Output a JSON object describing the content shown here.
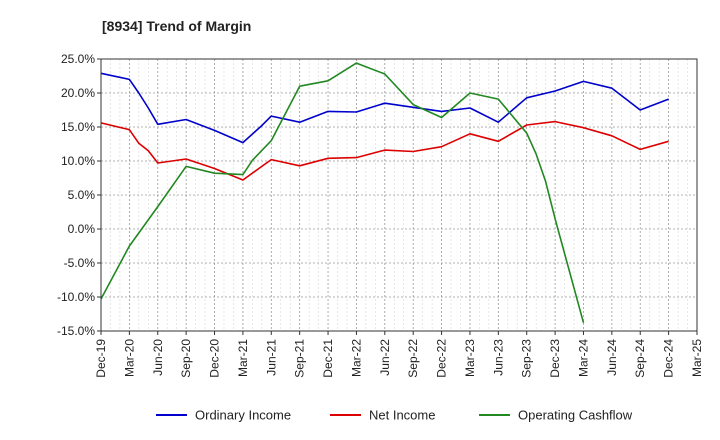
{
  "chart_data": {
    "type": "line",
    "title": "[8934]  Trend of Margin",
    "xlabel": "",
    "ylabel": "",
    "ylim": [
      -15,
      25
    ],
    "y_ticks": [
      "25.0%",
      "20.0%",
      "15.0%",
      "10.0%",
      "5.0%",
      "0.0%",
      "-5.0%",
      "-10.0%",
      "-15.0%"
    ],
    "y_tick_values": [
      25,
      20,
      15,
      10,
      5,
      0,
      -5,
      -10,
      -15
    ],
    "x_ticks": [
      "Dec-19",
      "Mar-20",
      "Jun-20",
      "Sep-20",
      "Dec-20",
      "Mar-21",
      "Jun-21",
      "Sep-21",
      "Dec-21",
      "Mar-22",
      "Jun-22",
      "Sep-22",
      "Dec-22",
      "Mar-23",
      "Jun-23",
      "Sep-23",
      "Dec-23",
      "Mar-24",
      "Jun-24",
      "Sep-24",
      "Dec-24",
      "Mar-25"
    ],
    "grid": true,
    "legend_position": "bottom",
    "series": [
      {
        "name": "Ordinary Income",
        "color": "#0000cc",
        "points": [
          [
            "Dec-19",
            22.9
          ],
          [
            "Mar-20",
            22.0
          ],
          [
            "Apr-20",
            20.0
          ],
          [
            "May-20",
            17.8
          ],
          [
            "Jun-20",
            15.4
          ],
          [
            "Sep-20",
            16.1
          ],
          [
            "Dec-20",
            14.5
          ],
          [
            "Mar-21",
            12.7
          ],
          [
            "May-21",
            15.2
          ],
          [
            "Jun-21",
            16.6
          ],
          [
            "Sep-21",
            15.7
          ],
          [
            "Dec-21",
            17.3
          ],
          [
            "Mar-22",
            17.2
          ],
          [
            "Jun-22",
            18.5
          ],
          [
            "Sep-22",
            17.9
          ],
          [
            "Dec-22",
            17.3
          ],
          [
            "Mar-23",
            17.8
          ],
          [
            "Jun-23",
            15.7
          ],
          [
            "Sep-23",
            19.3
          ],
          [
            "Dec-23",
            20.3
          ],
          [
            "Mar-24",
            21.7
          ],
          [
            "Jun-24",
            20.7
          ],
          [
            "Sep-24",
            17.5
          ],
          [
            "Dec-24",
            19.1
          ]
        ]
      },
      {
        "name": "Net Income",
        "color": "#dd0000",
        "points": [
          [
            "Dec-19",
            15.6
          ],
          [
            "Mar-20",
            14.6
          ],
          [
            "Apr-20",
            12.6
          ],
          [
            "May-20",
            11.5
          ],
          [
            "Jun-20",
            9.7
          ],
          [
            "Sep-20",
            10.3
          ],
          [
            "Dec-20",
            8.9
          ],
          [
            "Mar-21",
            7.2
          ],
          [
            "May-21",
            9.2
          ],
          [
            "Jun-21",
            10.2
          ],
          [
            "Sep-21",
            9.3
          ],
          [
            "Dec-21",
            10.4
          ],
          [
            "Mar-22",
            10.5
          ],
          [
            "Jun-22",
            11.6
          ],
          [
            "Sep-22",
            11.4
          ],
          [
            "Dec-22",
            12.1
          ],
          [
            "Mar-23",
            14.0
          ],
          [
            "Jun-23",
            12.9
          ],
          [
            "Sep-23",
            15.3
          ],
          [
            "Dec-23",
            15.8
          ],
          [
            "Mar-24",
            14.9
          ],
          [
            "Jun-24",
            13.7
          ],
          [
            "Sep-24",
            11.7
          ],
          [
            "Dec-24",
            12.9
          ]
        ]
      },
      {
        "name": "Operating Cashflow",
        "color": "#228822",
        "points": [
          [
            "Dec-19",
            -10.3
          ],
          [
            "Mar-20",
            -2.5
          ],
          [
            "Jun-20",
            3.3
          ],
          [
            "Sep-20",
            9.2
          ],
          [
            "Dec-20",
            8.2
          ],
          [
            "Mar-21",
            8.0
          ],
          [
            "Apr-21",
            10.1
          ],
          [
            "Jun-21",
            13.0
          ],
          [
            "Sep-21",
            21.0
          ],
          [
            "Dec-21",
            21.8
          ],
          [
            "Mar-22",
            24.4
          ],
          [
            "Jun-22",
            22.8
          ],
          [
            "Sep-22",
            18.3
          ],
          [
            "Dec-22",
            16.4
          ],
          [
            "Mar-23",
            20.0
          ],
          [
            "Jun-23",
            19.1
          ],
          [
            "Sep-23",
            14.1
          ],
          [
            "Oct-23",
            11.0
          ],
          [
            "Nov-23",
            7.0
          ],
          [
            "Dec-23",
            1.5
          ],
          [
            "Mar-24",
            -13.8
          ]
        ]
      }
    ]
  }
}
